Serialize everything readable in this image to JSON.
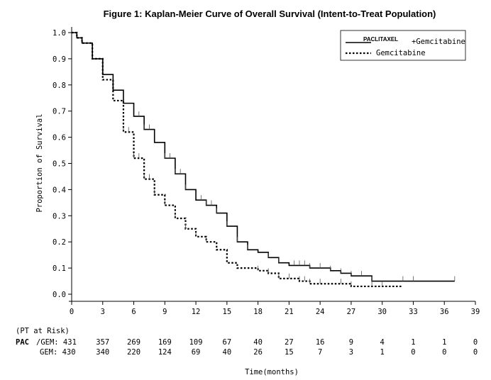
{
  "chart_data": {
    "type": "line",
    "title": "Figure 1: Kaplan-Meier Curve of Overall Survival (Intent-to-Treat Population)",
    "xlabel": "Time(months)",
    "ylabel": "Proportion of Survival",
    "xlim": [
      0,
      39
    ],
    "ylim": [
      0,
      1.0
    ],
    "xticks": [
      "0",
      "3",
      "6",
      "9",
      "12",
      "15",
      "18",
      "21",
      "24",
      "27",
      "30",
      "33",
      "36",
      "39"
    ],
    "yticks": [
      "0.0",
      "0.1",
      "0.2",
      "0.3",
      "0.4",
      "0.5",
      "0.6",
      "0.7",
      "0.8",
      "0.9",
      "1.0"
    ],
    "legend_position": "top-right",
    "legend": {
      "pac_label": "PACLITAXEL",
      "series1_suffix": "+Gemcitabine",
      "series2_label": "Gemcitabine"
    },
    "series": [
      {
        "name": "PACLITAXEL+Gemcitabine",
        "style": "solid",
        "x": [
          0,
          0.5,
          1,
          2,
          3,
          4,
          5,
          6,
          7,
          8,
          9,
          10,
          11,
          12,
          13,
          14,
          15,
          16,
          17,
          18,
          19,
          20,
          21,
          22,
          23,
          24,
          25,
          26,
          27,
          28,
          29,
          30,
          31,
          32,
          33,
          34,
          35,
          36,
          37
        ],
        "y": [
          1.0,
          0.98,
          0.96,
          0.9,
          0.84,
          0.78,
          0.73,
          0.68,
          0.63,
          0.58,
          0.52,
          0.46,
          0.4,
          0.36,
          0.34,
          0.31,
          0.26,
          0.2,
          0.17,
          0.16,
          0.14,
          0.12,
          0.11,
          0.11,
          0.1,
          0.1,
          0.09,
          0.08,
          0.07,
          0.07,
          0.05,
          0.05,
          0.05,
          0.05,
          0.05,
          0.05,
          0.05,
          0.05,
          0.05
        ]
      },
      {
        "name": "Gemcitabine",
        "style": "dotted",
        "x": [
          0,
          0.5,
          1,
          2,
          3,
          4,
          5,
          6,
          7,
          8,
          9,
          10,
          11,
          12,
          13,
          14,
          15,
          16,
          17,
          18,
          19,
          20,
          21,
          22,
          23,
          24,
          25,
          26,
          27,
          28,
          29,
          30,
          31,
          32
        ],
        "y": [
          1.0,
          0.98,
          0.96,
          0.9,
          0.82,
          0.74,
          0.62,
          0.52,
          0.44,
          0.38,
          0.34,
          0.29,
          0.25,
          0.22,
          0.2,
          0.17,
          0.12,
          0.1,
          0.1,
          0.09,
          0.08,
          0.06,
          0.06,
          0.05,
          0.04,
          0.04,
          0.04,
          0.04,
          0.03,
          0.03,
          0.03,
          0.03,
          0.03,
          0.03
        ]
      }
    ],
    "censor_marks": {
      "PACLITAXEL+Gemcitabine": [
        6.5,
        7,
        7.5,
        9,
        9.5,
        10,
        10.5,
        11,
        12.5,
        13,
        13.5,
        14,
        15,
        16,
        17,
        19,
        20,
        21.5,
        22,
        22.5,
        23,
        24,
        25,
        26,
        27,
        28,
        29,
        32,
        33,
        37
      ],
      "Gemcitabine": [
        5,
        5.5,
        6,
        6.5,
        7,
        7.5,
        8,
        9,
        10,
        11,
        12,
        13,
        18,
        19,
        20,
        21,
        22,
        22.5,
        23,
        24,
        26,
        27,
        29,
        30
      ]
    },
    "risk_table": {
      "header": "(PT at Risk)",
      "prefix": "PAC",
      "rows": [
        {
          "label": "/GEM: 431",
          "values": [
            "357",
            "269",
            "169",
            "109",
            "67",
            "40",
            "27",
            "16",
            "9",
            "4",
            "1",
            "1",
            "0"
          ]
        },
        {
          "label": "GEM: 430",
          "values": [
            "340",
            "220",
            "124",
            "69",
            "40",
            "26",
            "15",
            "7",
            "3",
            "1",
            "0",
            "0",
            "0"
          ]
        }
      ]
    }
  }
}
